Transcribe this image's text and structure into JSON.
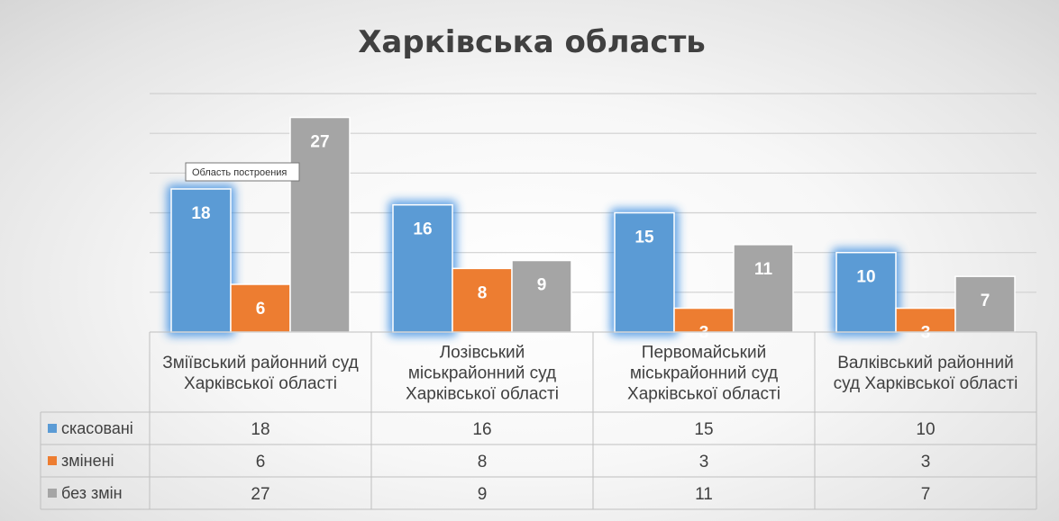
{
  "chart_data": {
    "type": "bar",
    "title": "Харківська область",
    "categories": [
      [
        "Зміївський районний суд",
        "Харківської області"
      ],
      [
        "Лозівський",
        "міськрайонний суд",
        "Харківської області"
      ],
      [
        "Первомайський",
        "міськрайонний суд",
        "Харківської області"
      ],
      [
        "Валківський районний",
        "суд Харківської області"
      ]
    ],
    "series": [
      {
        "name": "скасовані",
        "values": [
          18,
          16,
          15,
          10
        ],
        "color": "#5b9bd5"
      },
      {
        "name": "змінені",
        "values": [
          6,
          8,
          3,
          3
        ],
        "color": "#ed7d31"
      },
      {
        "name": "без змін",
        "values": [
          27,
          9,
          11,
          7
        ],
        "color": "#a5a5a5"
      }
    ],
    "ylim": [
      0,
      30
    ],
    "grid": true,
    "legend": "data-table",
    "highlighted_series": "скасовані",
    "tooltip": "Область построения"
  }
}
